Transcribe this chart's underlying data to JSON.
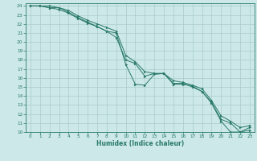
{
  "xlabel": "Humidex (Indice chaleur)",
  "bg_color": "#cce8e8",
  "grid_color": "#aacccc",
  "line_color": "#2a7a6a",
  "xlim": [
    -0.5,
    23.5
  ],
  "ylim": [
    10,
    24.3
  ],
  "xticks": [
    0,
    1,
    2,
    3,
    4,
    5,
    6,
    7,
    8,
    9,
    10,
    11,
    12,
    13,
    14,
    15,
    16,
    17,
    18,
    19,
    20,
    21,
    22,
    23
  ],
  "yticks": [
    10,
    11,
    12,
    13,
    14,
    15,
    16,
    17,
    18,
    19,
    20,
    21,
    22,
    23,
    24
  ],
  "line1_x": [
    0,
    1,
    2,
    3,
    4,
    5,
    6,
    7,
    8,
    9,
    10,
    11,
    12,
    13,
    14,
    15,
    16,
    17,
    18,
    19,
    20,
    21,
    22,
    23
  ],
  "line1_y": [
    24,
    24,
    23.8,
    23.8,
    23.3,
    22.7,
    22.2,
    21.7,
    21.2,
    21.0,
    17.5,
    15.3,
    15.2,
    16.4,
    16.5,
    15.3,
    15.3,
    15.1,
    14.5,
    13.2,
    11.2,
    10.0,
    10.0,
    10.5
  ],
  "line2_x": [
    0,
    1,
    2,
    3,
    4,
    5,
    6,
    7,
    8,
    9,
    10,
    11,
    12,
    13,
    14,
    15,
    16,
    17,
    18,
    19,
    20,
    21,
    22,
    23
  ],
  "line2_y": [
    24,
    24,
    23.8,
    23.6,
    23.2,
    22.6,
    22.1,
    21.7,
    21.2,
    20.5,
    18.0,
    17.6,
    16.2,
    16.5,
    16.5,
    15.4,
    15.4,
    15.0,
    14.5,
    13.3,
    11.4,
    11.0,
    10.0,
    10.2
  ],
  "line3_x": [
    0,
    2,
    3,
    4,
    5,
    6,
    7,
    8,
    9,
    10,
    11,
    12,
    13,
    14,
    15,
    16,
    17,
    18,
    19,
    20,
    21,
    22,
    23
  ],
  "line3_y": [
    24,
    24,
    23.8,
    23.5,
    22.9,
    22.4,
    22.0,
    21.6,
    21.2,
    18.5,
    17.8,
    16.7,
    16.5,
    16.5,
    15.7,
    15.5,
    15.2,
    14.8,
    13.5,
    11.8,
    11.2,
    10.5,
    10.7
  ]
}
